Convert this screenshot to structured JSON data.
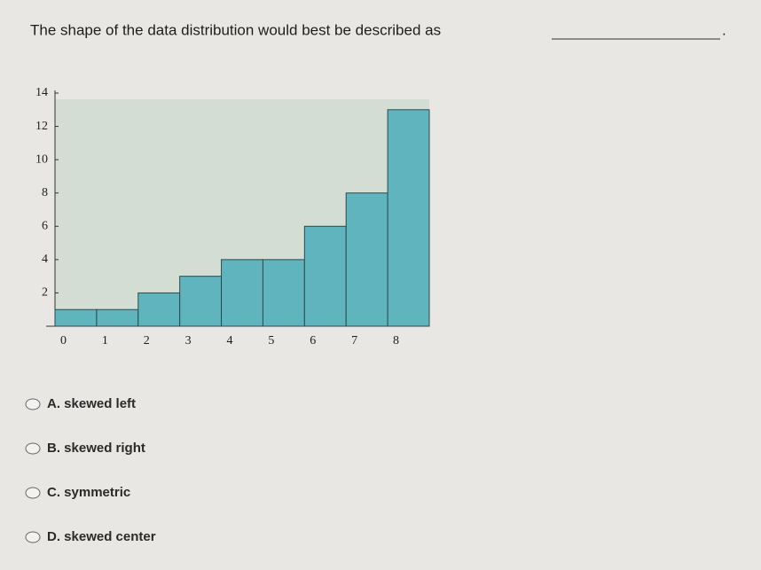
{
  "question": {
    "text": "The shape of the data distribution would best be described as",
    "end": "."
  },
  "chart_data": {
    "type": "bar",
    "categories": [
      "0",
      "1",
      "2",
      "3",
      "4",
      "5",
      "6",
      "7",
      "8"
    ],
    "values": [
      1,
      1,
      2,
      3,
      4,
      4,
      6,
      8,
      13
    ],
    "color": "#5fb4be",
    "ylim": [
      0,
      14
    ],
    "yticks": [
      2,
      4,
      6,
      8,
      10,
      12,
      14
    ]
  },
  "options": [
    "A. skewed left",
    "B. skewed right",
    "C. symmetric",
    "D. skewed center"
  ]
}
